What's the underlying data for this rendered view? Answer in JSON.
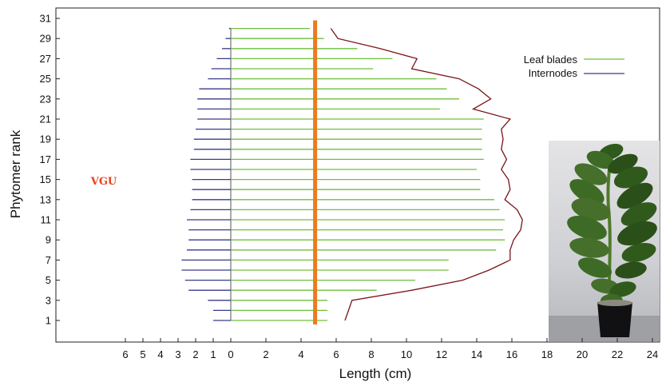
{
  "chart_data": {
    "type": "horizontal-bar",
    "xlabel": "Length (cm)",
    "ylabel": "Phytomer rank",
    "xlim": [
      -10,
      24
    ],
    "ylim": [
      0,
      31.5
    ],
    "x_ticks_left": [
      6,
      5,
      4,
      3,
      2,
      1,
      0
    ],
    "x_ticks_right": [
      2,
      4,
      6,
      8,
      10,
      12,
      14,
      16,
      18,
      20,
      22,
      24
    ],
    "y_ticks": [
      1,
      3,
      5,
      7,
      9,
      11,
      13,
      15,
      17,
      19,
      21,
      23,
      25,
      27,
      29,
      31
    ],
    "ranks": [
      1,
      2,
      3,
      4,
      5,
      6,
      7,
      8,
      9,
      10,
      11,
      12,
      13,
      14,
      15,
      16,
      17,
      18,
      19,
      20,
      21,
      22,
      23,
      24,
      25,
      26,
      27,
      28,
      29,
      30
    ],
    "series": [
      {
        "name": "Leaf blades",
        "color": "#6fbf3b",
        "values": [
          5.5,
          5.5,
          5.5,
          8.3,
          10.5,
          12.4,
          12.4,
          15.1,
          15.6,
          15.5,
          15.6,
          15.3,
          15.0,
          14.2,
          14.2,
          14.0,
          14.4,
          14.3,
          14.3,
          14.3,
          14.4,
          11.9,
          13.0,
          12.3,
          11.7,
          8.1,
          9.2,
          7.2,
          5.3,
          4.5
        ]
      },
      {
        "name": "Internodes",
        "color": "#3a3a8c",
        "values": [
          1.0,
          1.0,
          1.3,
          2.4,
          2.6,
          2.8,
          2.8,
          2.5,
          2.4,
          2.4,
          2.5,
          2.3,
          2.2,
          2.2,
          2.2,
          2.3,
          2.3,
          2.1,
          2.1,
          2.0,
          1.9,
          1.9,
          1.9,
          1.8,
          1.3,
          1.1,
          0.8,
          0.5,
          0.3,
          0.1
        ]
      },
      {
        "name": "envelope",
        "color": "#7a1418",
        "values": [
          6.5,
          6.7,
          6.9,
          10.3,
          13.2,
          14.7,
          15.9,
          15.9,
          16.1,
          16.5,
          16.6,
          16.3,
          15.6,
          15.9,
          15.8,
          15.4,
          15.7,
          15.4,
          15.5,
          15.4,
          15.9,
          13.8,
          14.8,
          14.1,
          13.0,
          10.3,
          10.6,
          8.5,
          6.1,
          5.7
        ]
      }
    ],
    "legend": {
      "position": "top-right",
      "entries": [
        "Leaf blades",
        "Internodes"
      ]
    },
    "annotations": {
      "vgu_label": "VGU",
      "vgu_bar_color": "#ea7b1f",
      "vgu_bar_x": -4.8
    },
    "photo": {
      "subject": "potted sunflower plant",
      "position": "bottom-right"
    }
  }
}
